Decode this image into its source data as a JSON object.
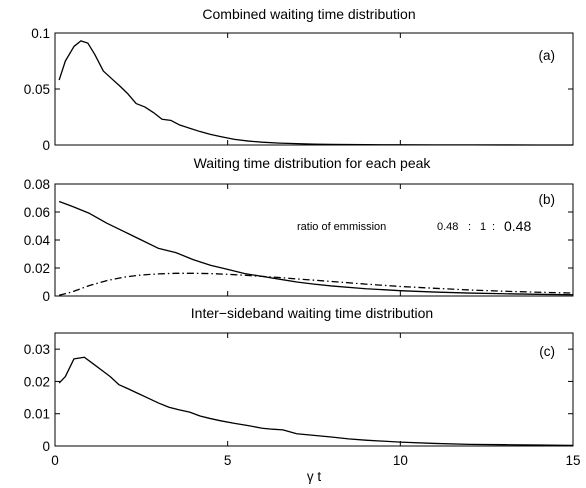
{
  "chart_data": [
    {
      "type": "line",
      "title": "Combined waiting time distribution",
      "panel_label": "(a)",
      "xlim": [
        0,
        15
      ],
      "ylim": [
        0,
        0.1
      ],
      "yticks": [
        0,
        0.05,
        0.1
      ],
      "ytick_labels": [
        "0",
        "0.05",
        "0.1"
      ],
      "xticks": [
        0,
        5,
        10,
        15
      ],
      "show_xtick_labels": false,
      "series": [
        {
          "style": "solid",
          "x": [
            0.12,
            0.3,
            0.55,
            0.75,
            0.95,
            1.15,
            1.4,
            1.65,
            1.9,
            2.1,
            2.35,
            2.6,
            2.85,
            3.1,
            3.35,
            3.6,
            3.9,
            4.2,
            4.5,
            4.8,
            5.2,
            5.6,
            6.0,
            6.5,
            7.0,
            7.5,
            8.0,
            9.0,
            10.0,
            11.0,
            12.0,
            13.0,
            14.0,
            15.0
          ],
          "y": [
            0.058,
            0.075,
            0.088,
            0.093,
            0.091,
            0.081,
            0.066,
            0.059,
            0.052,
            0.046,
            0.037,
            0.034,
            0.029,
            0.023,
            0.022,
            0.018,
            0.015,
            0.012,
            0.0095,
            0.0075,
            0.005,
            0.0035,
            0.0025,
            0.0017,
            0.0012,
            0.0008,
            0.0005,
            0.0003,
            0.0002,
            0.0001,
            0.0001,
            5e-05,
            3e-05,
            2e-05
          ]
        }
      ]
    },
    {
      "type": "line",
      "title": "Waiting time distribution for each peak",
      "panel_label": "(b)",
      "xlim": [
        0,
        15
      ],
      "ylim": [
        0,
        0.08
      ],
      "yticks": [
        0,
        0.02,
        0.04,
        0.06,
        0.08
      ],
      "ytick_labels": [
        "0",
        "0.02",
        "0.04",
        "0.06",
        "0.08"
      ],
      "xticks": [
        0,
        5,
        10,
        15
      ],
      "show_xtick_labels": false,
      "annotation": {
        "text": "ratio of emmission",
        "values": [
          "0.48",
          ":",
          "1",
          ":",
          "0.48"
        ]
      },
      "series": [
        {
          "style": "solid",
          "x": [
            0.12,
            0.5,
            1.0,
            1.5,
            2.0,
            2.5,
            3.0,
            3.5,
            4.0,
            4.5,
            5.0,
            5.5,
            6.0,
            6.5,
            7.0,
            7.5,
            8.0,
            9.0,
            10.0,
            11.0,
            12.0,
            13.0,
            14.0,
            15.0
          ],
          "y": [
            0.0675,
            0.064,
            0.059,
            0.052,
            0.046,
            0.04,
            0.034,
            0.031,
            0.026,
            0.022,
            0.019,
            0.016,
            0.014,
            0.012,
            0.01,
            0.0085,
            0.0072,
            0.0052,
            0.0038,
            0.0028,
            0.0021,
            0.0016,
            0.0012,
            0.0009
          ]
        },
        {
          "style": "dashdot",
          "x": [
            0.12,
            0.5,
            1.0,
            1.5,
            2.0,
            2.5,
            3.0,
            3.5,
            4.0,
            4.5,
            5.0,
            5.5,
            6.0,
            6.5,
            7.0,
            7.5,
            8.0,
            9.0,
            10.0,
            11.0,
            12.0,
            13.0,
            14.0,
            15.0
          ],
          "y": [
            0.0005,
            0.003,
            0.0075,
            0.011,
            0.0135,
            0.015,
            0.0158,
            0.0162,
            0.0162,
            0.016,
            0.0155,
            0.0148,
            0.014,
            0.0132,
            0.0122,
            0.0113,
            0.0104,
            0.0085,
            0.0068,
            0.0055,
            0.0043,
            0.0034,
            0.0027,
            0.0021
          ]
        }
      ]
    },
    {
      "type": "line",
      "title": "Inter−sideband waiting time distribution",
      "panel_label": "(c)",
      "xlim": [
        0,
        15
      ],
      "ylim": [
        0,
        0.035
      ],
      "yticks": [
        0,
        0.01,
        0.02,
        0.03
      ],
      "ytick_labels": [
        "0",
        "0.01",
        "0.02",
        "0.03"
      ],
      "xticks": [
        0,
        5,
        10,
        15
      ],
      "xtick_labels": [
        "0",
        "5",
        "10",
        "15"
      ],
      "show_xtick_labels": true,
      "xlabel": "γ t",
      "series": [
        {
          "style": "solid",
          "x": [
            0.12,
            0.3,
            0.55,
            0.85,
            1.1,
            1.35,
            1.6,
            1.85,
            2.1,
            2.4,
            2.7,
            3.0,
            3.3,
            3.6,
            3.9,
            4.2,
            4.5,
            4.8,
            5.2,
            5.6,
            6.0,
            6.3,
            6.6,
            7.0,
            7.5,
            8.0,
            8.5,
            9.0,
            9.5,
            10.0,
            11.0,
            12.0,
            13.0,
            14.0,
            15.0
          ],
          "y": [
            0.0195,
            0.0215,
            0.027,
            0.0275,
            0.0255,
            0.0235,
            0.0215,
            0.019,
            0.0178,
            0.0163,
            0.0148,
            0.0133,
            0.012,
            0.0112,
            0.0105,
            0.0093,
            0.0085,
            0.0078,
            0.007,
            0.0063,
            0.0055,
            0.0052,
            0.005,
            0.0038,
            0.0033,
            0.0028,
            0.0022,
            0.0018,
            0.0015,
            0.0012,
            0.0008,
            0.0005,
            0.0004,
            0.0003,
            0.0002
          ]
        }
      ]
    }
  ]
}
